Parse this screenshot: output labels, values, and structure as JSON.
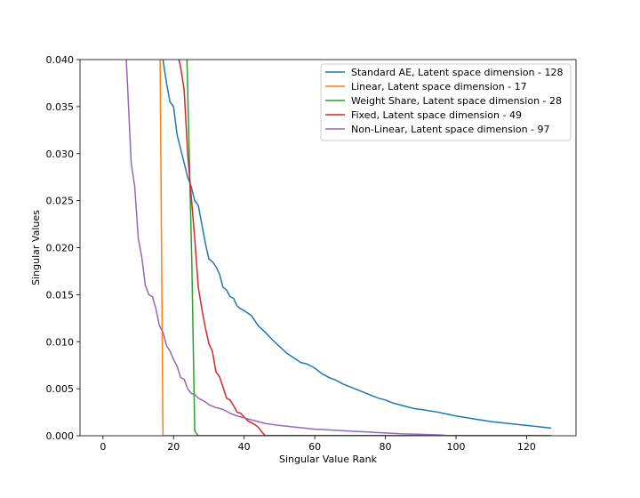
{
  "chart_data": {
    "type": "line",
    "title": "",
    "xlabel": "Singular Value Rank",
    "ylabel": "Singular Values",
    "xlim": [
      -6.5,
      134
    ],
    "ylim": [
      0,
      0.04
    ],
    "xticks": [
      0,
      20,
      40,
      60,
      80,
      100,
      120
    ],
    "xtick_labels": [
      "0",
      "20",
      "40",
      "60",
      "80",
      "100",
      "120"
    ],
    "yticks": [
      0,
      0.005,
      0.01,
      0.015,
      0.02,
      0.025,
      0.03,
      0.035,
      0.04
    ],
    "ytick_labels": [
      "0.000",
      "0.005",
      "0.010",
      "0.015",
      "0.020",
      "0.025",
      "0.030",
      "0.035",
      "0.040"
    ],
    "grid": false,
    "legend_position": "top-right",
    "series": [
      {
        "name": "Standard AE, Latent space dimension - 128",
        "color": "#1f77b4",
        "x": [
          17,
          18,
          19,
          20,
          21,
          22,
          23,
          24,
          25,
          26,
          27,
          28,
          29,
          30,
          31,
          32,
          33,
          34,
          35,
          36,
          37,
          38,
          39,
          40,
          42,
          44,
          46,
          48,
          50,
          52,
          54,
          56,
          58,
          60,
          62,
          64,
          66,
          68,
          70,
          72,
          74,
          76,
          78,
          80,
          82,
          84,
          86,
          88,
          90,
          95,
          100,
          105,
          110,
          115,
          120,
          125,
          127
        ],
        "y": [
          0.04,
          0.0375,
          0.0355,
          0.035,
          0.032,
          0.0305,
          0.029,
          0.0275,
          0.0265,
          0.025,
          0.0245,
          0.0225,
          0.0205,
          0.0188,
          0.0185,
          0.018,
          0.0172,
          0.0158,
          0.0155,
          0.0148,
          0.0146,
          0.0138,
          0.0135,
          0.0133,
          0.0128,
          0.0117,
          0.011,
          0.0102,
          0.0095,
          0.0088,
          0.0083,
          0.0078,
          0.0076,
          0.0072,
          0.0066,
          0.0062,
          0.0059,
          0.0055,
          0.0052,
          0.0049,
          0.0046,
          0.0043,
          0.004,
          0.0038,
          0.0035,
          0.0033,
          0.0031,
          0.0029,
          0.0028,
          0.0025,
          0.0021,
          0.0018,
          0.0015,
          0.0013,
          0.0011,
          0.0009,
          0.0008
        ]
      },
      {
        "name": "Linear, Latent space dimension - 17",
        "color": "#ff7f0e",
        "x": [
          16.2,
          17,
          17.3,
          20,
          40,
          60,
          80,
          100,
          120,
          127
        ],
        "y": [
          0.04,
          0.0,
          0.0,
          0.0,
          0.0,
          0.0,
          0.0,
          0.0,
          0.0,
          0.0
        ]
      },
      {
        "name": "Weight Share, Latent space dimension - 28",
        "color": "#2ca02c",
        "x": [
          23.8,
          24.5,
          25.2,
          25.7,
          26,
          27,
          40,
          60,
          80,
          100,
          120,
          127
        ],
        "y": [
          0.04,
          0.029,
          0.018,
          0.007,
          0.0005,
          0.0,
          0.0,
          0.0,
          0.0,
          0.0,
          0.0,
          0.0
        ]
      },
      {
        "name": "Fixed, Latent space dimension - 49",
        "color": "#d62728",
        "x": [
          21.5,
          22,
          23,
          24,
          25,
          26,
          27,
          28,
          29,
          30,
          31,
          32,
          33,
          34,
          35,
          36,
          37,
          38,
          39,
          40,
          41,
          42,
          43,
          44,
          45,
          46,
          47,
          60,
          80,
          100,
          120,
          127
        ],
        "y": [
          0.04,
          0.0392,
          0.0368,
          0.03,
          0.0255,
          0.021,
          0.0158,
          0.0135,
          0.0115,
          0.0098,
          0.009,
          0.0068,
          0.0063,
          0.0052,
          0.004,
          0.0038,
          0.0032,
          0.0025,
          0.0024,
          0.002,
          0.0016,
          0.0014,
          0.0012,
          0.0009,
          0.0004,
          0.0,
          0.0,
          0.0,
          0.0,
          0.0,
          0.0,
          0.0
        ]
      },
      {
        "name": "Non-Linear, Latent space dimension - 97",
        "color": "#9467bd",
        "x": [
          6.6,
          7,
          8,
          9,
          10,
          11,
          12,
          13,
          14,
          15,
          16,
          17,
          18,
          19,
          20,
          21,
          22,
          23,
          24,
          25,
          26,
          27,
          28,
          29,
          30,
          32,
          34,
          36,
          38,
          40,
          42,
          44,
          46,
          48,
          50,
          55,
          60,
          65,
          70,
          75,
          80,
          85,
          90,
          95,
          97,
          98,
          110,
          127
        ],
        "y": [
          0.04,
          0.037,
          0.029,
          0.0265,
          0.021,
          0.019,
          0.016,
          0.015,
          0.0148,
          0.0135,
          0.0117,
          0.011,
          0.0096,
          0.009,
          0.0081,
          0.0074,
          0.0062,
          0.006,
          0.005,
          0.0045,
          0.0044,
          0.004,
          0.0038,
          0.0036,
          0.0033,
          0.003,
          0.0028,
          0.0024,
          0.0021,
          0.0019,
          0.0017,
          0.0015,
          0.0013,
          0.0012,
          0.0011,
          0.0009,
          0.0007,
          0.0006,
          0.0005,
          0.0004,
          0.0003,
          0.0002,
          0.00015,
          0.0001,
          5e-05,
          0.0,
          0.0,
          0.0
        ]
      }
    ]
  }
}
